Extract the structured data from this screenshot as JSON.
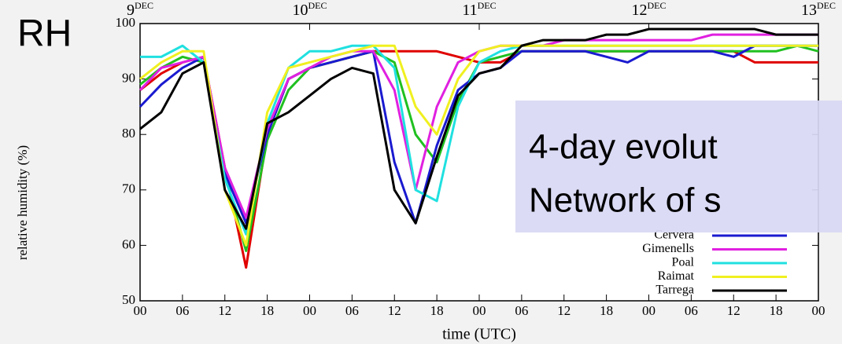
{
  "chart_data": {
    "type": "line",
    "overlay_title": "RH",
    "box_lines": [
      "4-day evolut",
      "Network of s"
    ],
    "x_label": "time (UTC)",
    "y_label": "relative humidity (%)",
    "day_labels": [
      {
        "value": 0,
        "label": "9",
        "sup": "DEC"
      },
      {
        "value": 24,
        "label": "10",
        "sup": "DEC"
      },
      {
        "value": 48,
        "label": "11",
        "sup": "DEC"
      },
      {
        "value": 72,
        "label": "12",
        "sup": "DEC"
      },
      {
        "value": 96,
        "label": "13",
        "sup": "DEC"
      }
    ],
    "x": [
      0,
      3,
      6,
      9,
      12,
      15,
      18,
      21,
      24,
      27,
      30,
      33,
      36,
      39,
      42,
      45,
      48,
      51,
      54,
      57,
      60,
      63,
      66,
      69,
      72,
      75,
      78,
      81,
      84,
      87,
      90,
      93,
      96
    ],
    "xlim": [
      0,
      96
    ],
    "xticks": [
      {
        "value": 0,
        "label": "00"
      },
      {
        "value": 6,
        "label": "06"
      },
      {
        "value": 12,
        "label": "12"
      },
      {
        "value": 18,
        "label": "18"
      },
      {
        "value": 24,
        "label": "00"
      },
      {
        "value": 30,
        "label": "06"
      },
      {
        "value": 36,
        "label": "12"
      },
      {
        "value": 42,
        "label": "18"
      },
      {
        "value": 48,
        "label": "00"
      },
      {
        "value": 54,
        "label": "06"
      },
      {
        "value": 60,
        "label": "12"
      },
      {
        "value": 66,
        "label": "18"
      },
      {
        "value": 72,
        "label": "00"
      },
      {
        "value": 78,
        "label": "06"
      },
      {
        "value": 84,
        "label": "12"
      },
      {
        "value": 90,
        "label": "18"
      },
      {
        "value": 96,
        "label": "00"
      }
    ],
    "ylim": [
      50,
      100
    ],
    "yticks": [
      50,
      60,
      70,
      80,
      90,
      100
    ],
    "series": [
      {
        "color": "#e00000",
        "values": [
          88,
          91,
          93,
          94,
          74,
          56,
          80,
          90,
          92,
          93,
          94,
          95,
          95,
          95,
          95,
          94,
          93,
          93,
          95,
          95,
          95,
          95,
          95,
          95,
          95,
          95,
          95,
          95,
          95,
          93,
          93,
          93,
          93
        ]
      },
      {
        "color": "#20c020",
        "values": [
          89,
          92,
          94,
          93,
          73,
          59,
          79,
          88,
          92,
          93,
          94,
          95,
          93,
          80,
          75,
          86,
          93,
          94,
          95,
          95,
          95,
          95,
          95,
          95,
          95,
          95,
          95,
          95,
          95,
          95,
          95,
          96,
          95
        ]
      },
      {
        "name": "Cervera",
        "color": "#1a1ad0",
        "values": [
          85,
          89,
          92,
          94,
          73,
          64,
          80,
          90,
          92,
          93,
          94,
          95,
          75,
          64,
          78,
          88,
          91,
          92,
          95,
          95,
          95,
          95,
          94,
          93,
          95,
          95,
          95,
          95,
          94,
          96,
          96,
          96,
          96
        ]
      },
      {
        "name": "Gimenells",
        "color": "#e020e0",
        "values": [
          88,
          92,
          93,
          94,
          74,
          65,
          81,
          90,
          92,
          94,
          95,
          95,
          88,
          70,
          85,
          93,
          95,
          96,
          96,
          96,
          97,
          97,
          97,
          97,
          97,
          97,
          97,
          98,
          98,
          98,
          98,
          98,
          98
        ]
      },
      {
        "name": "Poal",
        "color": "#20e0e0",
        "values": [
          94,
          94,
          96,
          93,
          72,
          62,
          82,
          92,
          95,
          95,
          96,
          96,
          92,
          70,
          68,
          85,
          93,
          95,
          96,
          96,
          96,
          96,
          96,
          96,
          96,
          96,
          96,
          96,
          96,
          96,
          96,
          96,
          96
        ]
      },
      {
        "name": "Raimat",
        "color": "#f0f020",
        "values": [
          90,
          93,
          95,
          95,
          70,
          60,
          84,
          92,
          93,
          94,
          95,
          96,
          96,
          85,
          80,
          90,
          95,
          96,
          96,
          96,
          96,
          96,
          96,
          96,
          96,
          96,
          96,
          96,
          96,
          96,
          96,
          96,
          96
        ]
      },
      {
        "name": "Tarrega",
        "color": "#000000",
        "values": [
          81,
          84,
          91,
          93,
          70,
          63,
          82,
          84,
          87,
          90,
          92,
          91,
          70,
          64,
          76,
          87,
          91,
          92,
          96,
          97,
          97,
          97,
          98,
          98,
          99,
          99,
          99,
          99,
          99,
          99,
          98,
          98,
          98
        ]
      }
    ]
  }
}
